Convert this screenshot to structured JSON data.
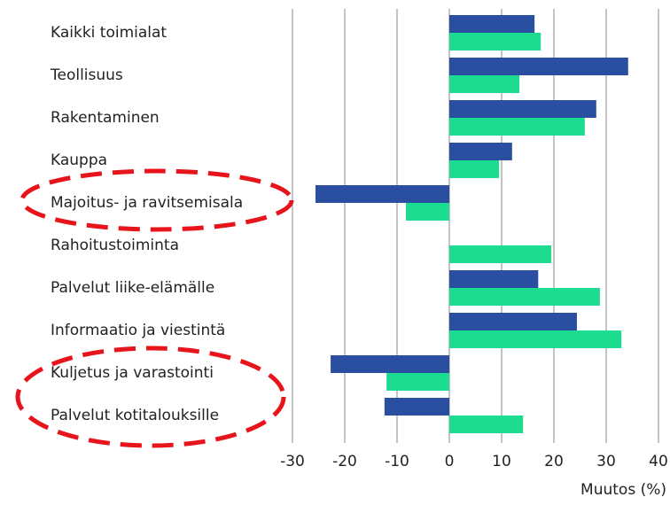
{
  "chart_data": {
    "type": "bar",
    "orientation": "horizontal",
    "xlabel": "Muutos (%)",
    "categories": [
      "Kaikki toimialat",
      "Teollisuus",
      "Rakentaminen",
      "Kauppa",
      "Majoitus- ja ravitsemisala",
      "Rahoitustoiminta",
      "Palvelut liike-elämälle",
      "Informaatio ja viestintä",
      "Kuljetus ja varastointi",
      "Palvelut kotitalouksille"
    ],
    "series": [
      {
        "color": "#2a4fa0",
        "values": [
          16.3,
          34.2,
          28.1,
          12.0,
          -25.6,
          null,
          17.0,
          24.4,
          -22.7,
          -12.4
        ]
      },
      {
        "color": "#1ddb8f",
        "values": [
          17.5,
          13.4,
          25.9,
          9.5,
          -8.3,
          19.5,
          28.8,
          32.9,
          -12.0,
          14.1
        ]
      }
    ],
    "xlim": [
      -30,
      40
    ],
    "xticks": [
      -30,
      -20,
      -10,
      0,
      10,
      20,
      30,
      40
    ],
    "grid": true
  }
}
